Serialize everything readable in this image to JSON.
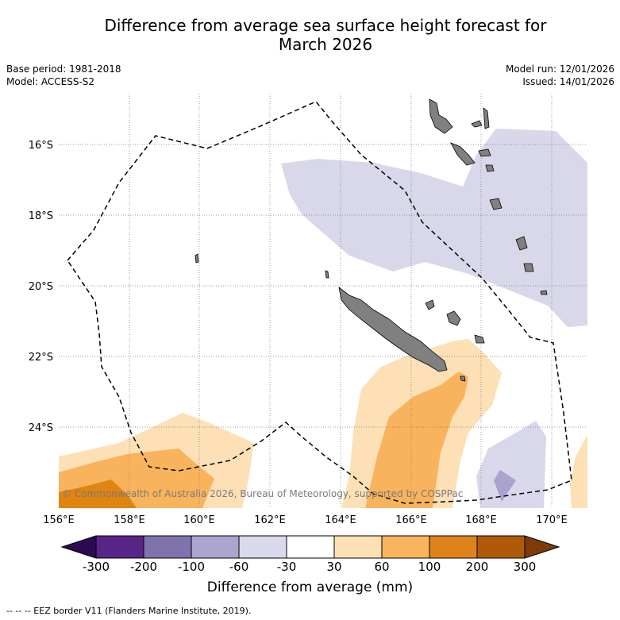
{
  "header": {
    "title_line1": "Difference from average sea surface height forecast for",
    "title_line2": "March 2026",
    "base_period": "Base period: 1981-2018",
    "model": "Model: ACCESS-S2",
    "model_run": "Model run: 12/01/2026",
    "issued": "Issued: 14/01/2026"
  },
  "map": {
    "lon_range": [
      156,
      171
    ],
    "lat_range": [
      -26.3,
      -14.8
    ],
    "lat_labels": [
      "16°S",
      "18°S",
      "20°S",
      "22°S",
      "24°S"
    ],
    "lon_labels": [
      "156°E",
      "158°E",
      "160°E",
      "162°E",
      "164°E",
      "166°E",
      "168°E",
      "170°E"
    ],
    "copyright": "© Commonwealth of Australia 2026, Bureau of Meteorology, supported by COSPPac",
    "colors": {
      "land": "#808080",
      "lavender": "#d8d8ea",
      "light_orange": "#fde0b6",
      "mid_orange": "#f9b35d",
      "dark_orange": "#e08412",
      "purple_mid": "#aaa3cf"
    }
  },
  "colorbar": {
    "ticks": [
      "-300",
      "-200",
      "-100",
      "-60",
      "-30",
      "30",
      "60",
      "100",
      "200",
      "300"
    ],
    "colors": [
      "#2d0a52",
      "#5a2589",
      "#8073ad",
      "#aba5cf",
      "#d8d9eb",
      "#ffffff",
      "#fee0b5",
      "#f9b45e",
      "#e0821a",
      "#b05a09",
      "#7e3b08"
    ],
    "label": "Difference from average (mm)"
  },
  "footer": {
    "legend": "--  --  -- EEZ border V11 (Flanders Marine Institute, 2019)."
  }
}
